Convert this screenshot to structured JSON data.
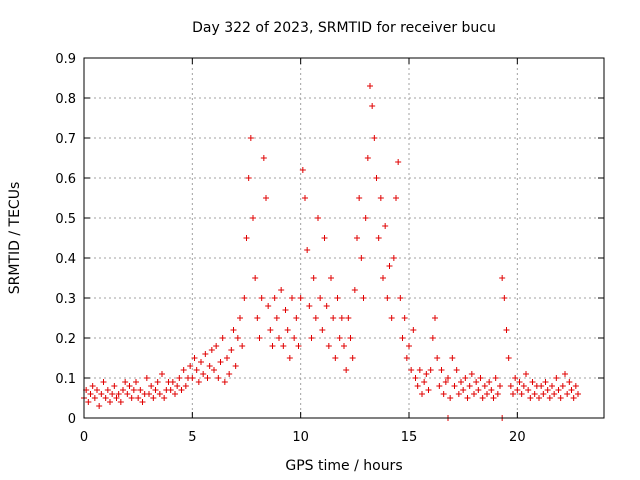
{
  "chart_data": {
    "type": "scatter",
    "title": "Day 322 of 2023, SRMTID for receiver bucu",
    "xlabel": "GPS time / hours",
    "ylabel": "SRMTID / TECUs",
    "xlim": [
      0,
      24
    ],
    "ylim": [
      0,
      0.9
    ],
    "x_ticks": [
      "0",
      "5",
      "10",
      "15",
      "20"
    ],
    "y_ticks": [
      "0",
      "0.1",
      "0.2",
      "0.3",
      "0.4",
      "0.5",
      "0.6",
      "0.7",
      "0.8",
      "0.9"
    ],
    "grid": true,
    "marker": "+",
    "color": "#e00000",
    "series": [
      {
        "name": "SRMTID",
        "points": [
          [
            0.0,
            0.05
          ],
          [
            0.1,
            0.07
          ],
          [
            0.2,
            0.04
          ],
          [
            0.3,
            0.06
          ],
          [
            0.4,
            0.08
          ],
          [
            0.5,
            0.05
          ],
          [
            0.6,
            0.07
          ],
          [
            0.7,
            0.03
          ],
          [
            0.8,
            0.06
          ],
          [
            0.9,
            0.09
          ],
          [
            1.0,
            0.05
          ],
          [
            1.1,
            0.07
          ],
          [
            1.2,
            0.04
          ],
          [
            1.3,
            0.06
          ],
          [
            1.4,
            0.08
          ],
          [
            1.5,
            0.05
          ],
          [
            1.6,
            0.06
          ],
          [
            1.7,
            0.04
          ],
          [
            1.8,
            0.07
          ],
          [
            1.9,
            0.09
          ],
          [
            2.0,
            0.06
          ],
          [
            2.1,
            0.08
          ],
          [
            2.2,
            0.05
          ],
          [
            2.3,
            0.07
          ],
          [
            2.4,
            0.09
          ],
          [
            2.5,
            0.05
          ],
          [
            2.6,
            0.07
          ],
          [
            2.7,
            0.04
          ],
          [
            2.8,
            0.06
          ],
          [
            2.9,
            0.1
          ],
          [
            3.0,
            0.06
          ],
          [
            3.1,
            0.08
          ],
          [
            3.2,
            0.05
          ],
          [
            3.3,
            0.07
          ],
          [
            3.4,
            0.09
          ],
          [
            3.5,
            0.06
          ],
          [
            3.6,
            0.11
          ],
          [
            3.7,
            0.05
          ],
          [
            3.8,
            0.07
          ],
          [
            3.9,
            0.09
          ],
          [
            4.0,
            0.07
          ],
          [
            4.1,
            0.09
          ],
          [
            4.2,
            0.06
          ],
          [
            4.3,
            0.08
          ],
          [
            4.4,
            0.1
          ],
          [
            4.5,
            0.07
          ],
          [
            4.6,
            0.12
          ],
          [
            4.7,
            0.08
          ],
          [
            4.8,
            0.1
          ],
          [
            4.9,
            0.13
          ],
          [
            5.0,
            0.1
          ],
          [
            5.1,
            0.15
          ],
          [
            5.2,
            0.12
          ],
          [
            5.3,
            0.09
          ],
          [
            5.4,
            0.14
          ],
          [
            5.5,
            0.11
          ],
          [
            5.6,
            0.16
          ],
          [
            5.7,
            0.1
          ],
          [
            5.8,
            0.13
          ],
          [
            5.9,
            0.17
          ],
          [
            6.0,
            0.12
          ],
          [
            6.1,
            0.18
          ],
          [
            6.2,
            0.1
          ],
          [
            6.3,
            0.14
          ],
          [
            6.4,
            0.2
          ],
          [
            6.5,
            0.09
          ],
          [
            6.6,
            0.15
          ],
          [
            6.7,
            0.11
          ],
          [
            6.8,
            0.17
          ],
          [
            6.9,
            0.22
          ],
          [
            7.0,
            0.13
          ],
          [
            7.1,
            0.2
          ],
          [
            7.2,
            0.25
          ],
          [
            7.3,
            0.18
          ],
          [
            7.4,
            0.3
          ],
          [
            7.5,
            0.45
          ],
          [
            7.6,
            0.6
          ],
          [
            7.7,
            0.7
          ],
          [
            7.8,
            0.5
          ],
          [
            7.9,
            0.35
          ],
          [
            8.0,
            0.25
          ],
          [
            8.1,
            0.2
          ],
          [
            8.2,
            0.3
          ],
          [
            8.3,
            0.65
          ],
          [
            8.4,
            0.55
          ],
          [
            8.5,
            0.28
          ],
          [
            8.6,
            0.22
          ],
          [
            8.7,
            0.18
          ],
          [
            8.8,
            0.3
          ],
          [
            8.9,
            0.25
          ],
          [
            9.0,
            0.2
          ],
          [
            9.1,
            0.32
          ],
          [
            9.2,
            0.18
          ],
          [
            9.3,
            0.27
          ],
          [
            9.4,
            0.22
          ],
          [
            9.5,
            0.15
          ],
          [
            9.6,
            0.3
          ],
          [
            9.7,
            0.2
          ],
          [
            9.8,
            0.25
          ],
          [
            9.9,
            0.18
          ],
          [
            10.0,
            0.3
          ],
          [
            10.1,
            0.62
          ],
          [
            10.2,
            0.55
          ],
          [
            10.3,
            0.42
          ],
          [
            10.4,
            0.28
          ],
          [
            10.5,
            0.2
          ],
          [
            10.6,
            0.35
          ],
          [
            10.7,
            0.25
          ],
          [
            10.8,
            0.5
          ],
          [
            10.9,
            0.3
          ],
          [
            11.0,
            0.22
          ],
          [
            11.1,
            0.45
          ],
          [
            11.2,
            0.28
          ],
          [
            11.3,
            0.18
          ],
          [
            11.4,
            0.35
          ],
          [
            11.5,
            0.25
          ],
          [
            11.6,
            0.15
          ],
          [
            11.7,
            0.3
          ],
          [
            11.8,
            0.2
          ],
          [
            11.9,
            0.25
          ],
          [
            12.0,
            0.18
          ],
          [
            12.1,
            0.12
          ],
          [
            12.2,
            0.25
          ],
          [
            12.3,
            0.2
          ],
          [
            12.4,
            0.15
          ],
          [
            12.5,
            0.32
          ],
          [
            12.6,
            0.45
          ],
          [
            12.7,
            0.55
          ],
          [
            12.8,
            0.4
          ],
          [
            12.9,
            0.3
          ],
          [
            13.0,
            0.5
          ],
          [
            13.1,
            0.65
          ],
          [
            13.2,
            0.83
          ],
          [
            13.3,
            0.78
          ],
          [
            13.4,
            0.7
          ],
          [
            13.5,
            0.6
          ],
          [
            13.6,
            0.45
          ],
          [
            13.7,
            0.55
          ],
          [
            13.8,
            0.35
          ],
          [
            13.9,
            0.48
          ],
          [
            14.0,
            0.3
          ],
          [
            14.1,
            0.38
          ],
          [
            14.2,
            0.25
          ],
          [
            14.3,
            0.4
          ],
          [
            14.4,
            0.55
          ],
          [
            14.5,
            0.64
          ],
          [
            14.6,
            0.3
          ],
          [
            14.7,
            0.2
          ],
          [
            14.8,
            0.25
          ],
          [
            14.9,
            0.15
          ],
          [
            15.0,
            0.18
          ],
          [
            15.1,
            0.12
          ],
          [
            15.2,
            0.22
          ],
          [
            15.3,
            0.1
          ],
          [
            15.4,
            0.08
          ],
          [
            15.5,
            0.12
          ],
          [
            15.6,
            0.06
          ],
          [
            15.7,
            0.09
          ],
          [
            15.8,
            0.11
          ],
          [
            15.9,
            0.07
          ],
          [
            16.0,
            0.12
          ],
          [
            16.1,
            0.2
          ],
          [
            16.2,
            0.25
          ],
          [
            16.3,
            0.15
          ],
          [
            16.4,
            0.08
          ],
          [
            16.5,
            0.12
          ],
          [
            16.6,
            0.06
          ],
          [
            16.7,
            0.09
          ],
          [
            16.8,
            0.1
          ],
          [
            16.9,
            0.05
          ],
          [
            17.0,
            0.15
          ],
          [
            17.1,
            0.08
          ],
          [
            17.2,
            0.12
          ],
          [
            17.3,
            0.06
          ],
          [
            17.4,
            0.09
          ],
          [
            17.5,
            0.07
          ],
          [
            17.6,
            0.1
          ],
          [
            17.7,
            0.05
          ],
          [
            17.8,
            0.08
          ],
          [
            17.9,
            0.11
          ],
          [
            18.0,
            0.06
          ],
          [
            18.1,
            0.09
          ],
          [
            18.2,
            0.07
          ],
          [
            18.3,
            0.1
          ],
          [
            18.4,
            0.05
          ],
          [
            18.5,
            0.08
          ],
          [
            18.6,
            0.06
          ],
          [
            18.7,
            0.09
          ],
          [
            18.8,
            0.07
          ],
          [
            18.9,
            0.05
          ],
          [
            19.0,
            0.1
          ],
          [
            19.1,
            0.06
          ],
          [
            19.2,
            0.08
          ],
          [
            19.3,
            0.35
          ],
          [
            19.4,
            0.3
          ],
          [
            19.5,
            0.22
          ],
          [
            19.6,
            0.15
          ],
          [
            19.7,
            0.08
          ],
          [
            19.8,
            0.06
          ],
          [
            19.9,
            0.1
          ],
          [
            20.0,
            0.07
          ],
          [
            20.1,
            0.09
          ],
          [
            20.2,
            0.06
          ],
          [
            20.3,
            0.08
          ],
          [
            20.4,
            0.11
          ],
          [
            20.5,
            0.07
          ],
          [
            20.6,
            0.05
          ],
          [
            20.7,
            0.09
          ],
          [
            20.8,
            0.06
          ],
          [
            20.9,
            0.08
          ],
          [
            21.0,
            0.05
          ],
          [
            21.1,
            0.08
          ],
          [
            21.2,
            0.06
          ],
          [
            21.3,
            0.09
          ],
          [
            21.4,
            0.07
          ],
          [
            21.5,
            0.05
          ],
          [
            21.6,
            0.08
          ],
          [
            21.7,
            0.06
          ],
          [
            21.8,
            0.1
          ],
          [
            21.9,
            0.07
          ],
          [
            22.0,
            0.05
          ],
          [
            22.1,
            0.08
          ],
          [
            22.2,
            0.11
          ],
          [
            22.3,
            0.06
          ],
          [
            22.4,
            0.09
          ],
          [
            22.5,
            0.07
          ],
          [
            22.6,
            0.05
          ],
          [
            22.7,
            0.08
          ],
          [
            22.8,
            0.06
          ],
          [
            16.8,
            0.0
          ],
          [
            19.3,
            0.0
          ]
        ]
      }
    ]
  }
}
